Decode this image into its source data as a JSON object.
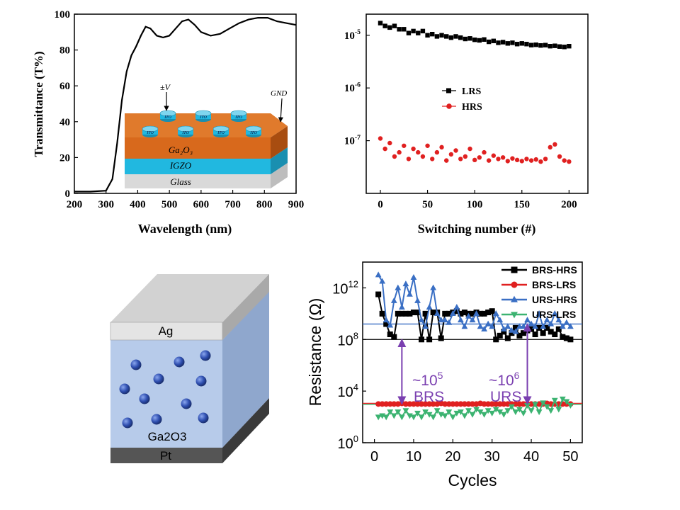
{
  "colors": {
    "black": "#000000",
    "red": "#e02020",
    "blue": "#3a6fc4",
    "green": "#3cb371",
    "purple": "#7a3fb0",
    "orange": "#d8691c",
    "cyan": "#21b8e0",
    "glass": "#d9d9d9"
  },
  "panel_a": {
    "inset": {
      "voltage_label": "±V",
      "gnd_label": "GND",
      "electrode_label": "ITO",
      "layers": [
        {
          "label": "Ga₂O₃",
          "color": "#d8691c"
        },
        {
          "label": "IGZO",
          "color": "#21b8e0"
        },
        {
          "label": "Glass",
          "color": "#d9d9d9"
        }
      ]
    }
  },
  "panel_c": {
    "layers": [
      {
        "label": "Ag",
        "color": "#d9d9d9"
      },
      {
        "label": "Ga2O3",
        "color": "#b7cbea"
      },
      {
        "label": "Pt",
        "color": "#555555"
      }
    ],
    "particle_color": "#2f4fb0"
  },
  "panel_d_annotations": [
    {
      "ratio": "~10",
      "exp": "5",
      "label": "BRS"
    },
    {
      "ratio": "~10",
      "exp": "6",
      "label": "URS"
    }
  ],
  "chart_data": [
    {
      "id": "transmittance",
      "type": "line",
      "xlabel": "Wavelength (nm)",
      "ylabel": "Transmittance (T%)",
      "xlim": [
        200,
        900
      ],
      "ylim": [
        0,
        100
      ],
      "xticks": [
        200,
        300,
        400,
        500,
        600,
        700,
        800,
        900
      ],
      "yticks": [
        0,
        20,
        40,
        60,
        80,
        100
      ],
      "series": [
        {
          "x": [
            200,
            250,
            300,
            320,
            335,
            350,
            365,
            380,
            395,
            410,
            425,
            440,
            460,
            480,
            500,
            520,
            540,
            560,
            580,
            600,
            630,
            660,
            690,
            720,
            750,
            780,
            810,
            840,
            870,
            900
          ],
          "y": [
            1,
            1,
            1.5,
            8,
            28,
            52,
            68,
            77,
            82,
            88,
            93,
            92,
            88,
            87,
            88,
            92,
            96,
            97,
            94,
            90,
            88,
            89,
            92,
            95,
            97,
            98,
            98,
            96,
            95,
            94
          ]
        }
      ]
    },
    {
      "id": "switching",
      "type": "scatter",
      "xlabel": "Switching number (#)",
      "ylabel": "",
      "xlim": [
        -15,
        220
      ],
      "ylim_log10": [
        -8,
        -4.6
      ],
      "xticks": [
        0,
        50,
        100,
        150,
        200
      ],
      "yticks_log10": [
        -7,
        -6,
        -5
      ],
      "legend_position": "center-left",
      "series": [
        {
          "name": "LRS",
          "color": "#000000",
          "marker": "square",
          "x": [
            0,
            5,
            10,
            15,
            20,
            25,
            30,
            35,
            40,
            45,
            50,
            55,
            60,
            65,
            70,
            75,
            80,
            85,
            90,
            95,
            100,
            105,
            110,
            115,
            120,
            125,
            130,
            135,
            140,
            145,
            150,
            155,
            160,
            165,
            170,
            175,
            180,
            185,
            190,
            195,
            200
          ],
          "y": [
            1.7e-05,
            1.5e-05,
            1.4e-05,
            1.5e-05,
            1.3e-05,
            1.3e-05,
            1.1e-05,
            1.2e-05,
            1.1e-05,
            1.2e-05,
            1e-05,
            1.05e-05,
            9.5e-06,
            1e-05,
            9.5e-06,
            9e-06,
            9.5e-06,
            9e-06,
            8.5e-06,
            8.7e-06,
            8.2e-06,
            8e-06,
            8.3e-06,
            7.5e-06,
            7.8e-06,
            7.2e-06,
            7.4e-06,
            7e-06,
            7.2e-06,
            6.8e-06,
            7e-06,
            6.8e-06,
            6.5e-06,
            6.6e-06,
            6.4e-06,
            6.5e-06,
            6.2e-06,
            6.3e-06,
            6.1e-06,
            6e-06,
            6.2e-06
          ]
        },
        {
          "name": "HRS",
          "color": "#e02020",
          "marker": "circle",
          "x": [
            0,
            5,
            10,
            15,
            20,
            25,
            30,
            35,
            40,
            45,
            50,
            55,
            60,
            65,
            70,
            75,
            80,
            85,
            90,
            95,
            100,
            105,
            110,
            115,
            120,
            125,
            130,
            135,
            140,
            145,
            150,
            155,
            160,
            165,
            170,
            175,
            180,
            185,
            190,
            195,
            200
          ],
          "y": [
            1.1e-07,
            7e-08,
            9e-08,
            5e-08,
            6e-08,
            8e-08,
            4.5e-08,
            7e-08,
            6e-08,
            5e-08,
            8e-08,
            4.5e-08,
            6e-08,
            7.5e-08,
            4.2e-08,
            5.5e-08,
            6.5e-08,
            4.5e-08,
            5e-08,
            7e-08,
            4.3e-08,
            4.8e-08,
            6e-08,
            4.2e-08,
            5.2e-08,
            4.5e-08,
            4.8e-08,
            4.1e-08,
            4.6e-08,
            4.3e-08,
            4.1e-08,
            4.5e-08,
            4.2e-08,
            4.4e-08,
            4e-08,
            4.5e-08,
            7.5e-08,
            8.5e-08,
            5e-08,
            4.2e-08,
            4e-08
          ]
        }
      ]
    },
    {
      "id": "resistance",
      "type": "line",
      "xlabel": "Cycles",
      "ylabel": "Resistance (Ω)",
      "xlim": [
        -3,
        53
      ],
      "ylim_log10": [
        0,
        14
      ],
      "xticks": [
        0,
        10,
        20,
        30,
        40,
        50
      ],
      "yticks_log10": [
        0,
        4,
        8,
        12
      ],
      "legend_position": "top-right",
      "series": [
        {
          "name": "BRS-HRS",
          "color": "#000000",
          "marker": "square",
          "x": [
            1,
            2,
            3,
            4,
            5,
            6,
            7,
            8,
            9,
            10,
            11,
            12,
            13,
            14,
            15,
            16,
            17,
            18,
            19,
            20,
            21,
            22,
            23,
            24,
            25,
            26,
            27,
            28,
            29,
            30,
            31,
            32,
            33,
            34,
            35,
            36,
            37,
            38,
            39,
            40,
            41,
            42,
            43,
            44,
            45,
            46,
            47,
            48,
            49,
            50
          ],
          "y_log10": [
            11.5,
            10.0,
            9.2,
            8.4,
            8.2,
            10.0,
            10.0,
            10.0,
            10.0,
            10.1,
            10.1,
            8.0,
            10.0,
            8.0,
            10.1,
            10.1,
            8.1,
            10.0,
            10.0,
            10.1,
            10.2,
            10.0,
            10.1,
            10.0,
            10.0,
            10.1,
            10.0,
            10.0,
            10.1,
            10.2,
            8.0,
            8.3,
            8.6,
            8.1,
            8.5,
            8.9,
            8.3,
            8.5,
            8.7,
            8.8,
            8.4,
            8.9,
            8.5,
            8.9,
            8.6,
            8.4,
            8.8,
            8.2,
            8.1,
            8.0
          ]
        },
        {
          "name": "BRS-LRS",
          "color": "#e02020",
          "marker": "circle",
          "x": [
            1,
            2,
            3,
            4,
            5,
            6,
            7,
            8,
            9,
            10,
            11,
            12,
            13,
            14,
            15,
            16,
            17,
            18,
            19,
            20,
            21,
            22,
            23,
            24,
            25,
            26,
            27,
            28,
            29,
            30,
            31,
            32,
            33,
            34,
            35,
            36,
            37,
            38,
            39,
            40,
            41,
            42,
            43,
            44,
            45,
            46,
            47,
            48,
            49,
            50
          ],
          "y_log10": [
            3.0,
            3.0,
            3.0,
            3.0,
            3.0,
            3.0,
            3.05,
            3.0,
            3.0,
            3.0,
            3.0,
            3.0,
            3.0,
            3.0,
            3.0,
            3.0,
            3.05,
            3.0,
            3.0,
            3.0,
            3.0,
            3.0,
            3.0,
            3.0,
            3.0,
            3.0,
            3.05,
            3.0,
            3.0,
            3.0,
            3.0,
            3.0,
            3.0,
            3.0,
            3.0,
            3.0,
            3.0,
            3.0,
            3.0,
            3.0,
            3.0,
            3.0,
            3.0,
            3.05,
            3.0,
            3.0,
            3.0,
            3.0,
            3.0,
            3.0
          ]
        },
        {
          "name": "URS-HRS",
          "color": "#3a6fc4",
          "marker": "triangle-up",
          "x": [
            1,
            2,
            3,
            4,
            5,
            6,
            7,
            8,
            9,
            10,
            11,
            12,
            13,
            14,
            15,
            16,
            17,
            18,
            19,
            20,
            21,
            22,
            23,
            24,
            25,
            26,
            27,
            28,
            29,
            30,
            31,
            32,
            33,
            34,
            35,
            36,
            37,
            38,
            39,
            40,
            41,
            42,
            43,
            44,
            45,
            46,
            47,
            48,
            49,
            50
          ],
          "y_log10": [
            13.0,
            12.5,
            9.5,
            9.1,
            11.0,
            12.0,
            10.5,
            12.3,
            11.5,
            12.8,
            11.0,
            9.5,
            9.0,
            10.5,
            12.0,
            10.0,
            9.5,
            9.5,
            9.3,
            10.0,
            10.5,
            9.5,
            9.0,
            9.8,
            9.5,
            10.0,
            9.0,
            8.8,
            9.2,
            9.0,
            10.0,
            9.5,
            8.8,
            9.0,
            8.7,
            8.6,
            9.0,
            9.0,
            9.5,
            9.2,
            9.0,
            10.0,
            9.0,
            9.5,
            9.2,
            10.0,
            9.5,
            9.0,
            9.3,
            9.0
          ]
        },
        {
          "name": "URS-LRS",
          "color": "#3cb371",
          "marker": "triangle-down",
          "x": [
            1,
            2,
            3,
            4,
            5,
            6,
            7,
            8,
            9,
            10,
            11,
            12,
            13,
            14,
            15,
            16,
            17,
            18,
            19,
            20,
            21,
            22,
            23,
            24,
            25,
            26,
            27,
            28,
            29,
            30,
            31,
            32,
            33,
            34,
            35,
            36,
            37,
            38,
            39,
            40,
            41,
            42,
            43,
            44,
            45,
            46,
            47,
            48,
            49,
            50
          ],
          "y_log10": [
            2.0,
            2.1,
            2.0,
            2.4,
            2.1,
            2.4,
            2.0,
            2.5,
            2.1,
            2.0,
            2.3,
            2.0,
            2.4,
            2.2,
            2.0,
            2.5,
            2.2,
            2.1,
            2.4,
            2.0,
            2.3,
            2.4,
            2.1,
            2.5,
            2.2,
            2.6,
            2.4,
            2.2,
            2.5,
            2.3,
            2.6,
            2.4,
            2.2,
            2.5,
            2.8,
            2.4,
            2.6,
            2.3,
            2.9,
            2.5,
            3.0,
            2.4,
            3.1,
            2.8,
            2.5,
            3.3,
            2.6,
            3.4,
            3.2,
            2.9
          ]
        }
      ],
      "reference_lines": [
        {
          "color": "#3a6fc4",
          "y_log10": 9.2
        },
        {
          "color": "#000000",
          "y_log10": 8.0
        },
        {
          "color": "#3cb371",
          "y_log10": 2.95
        },
        {
          "color": "#e02020",
          "y_log10": 3.05
        }
      ],
      "arrows": [
        {
          "x": 7,
          "from_log10": 3.0,
          "to_log10": 8.0
        },
        {
          "x": 39,
          "from_log10": 3.0,
          "to_log10": 9.2
        }
      ]
    }
  ]
}
